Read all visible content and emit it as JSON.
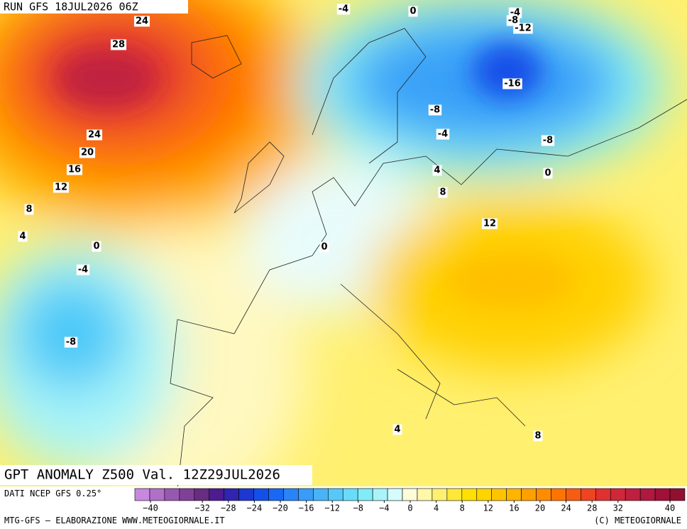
{
  "header": {
    "run": "RUN GFS 18JUL2026 06Z"
  },
  "map": {
    "title": "GPT ANOMALY Z500 Val. 12Z29JUL2026",
    "contour_labels": [
      "-4",
      "0",
      "-4",
      "-8",
      "-12",
      "24",
      "28",
      "-16",
      "-8",
      "-4",
      "-8",
      "24",
      "20",
      "16",
      "12",
      "4",
      "0",
      "8",
      "8",
      "12",
      "4",
      "0",
      "0",
      "-4",
      "-8",
      "4",
      "8"
    ]
  },
  "colorbar": {
    "source": "DATI NCEP GFS 0.25°",
    "colors": [
      "#c888e0",
      "#b070c8",
      "#9858b0",
      "#804098",
      "#682c80",
      "#4c1c90",
      "#3024b0",
      "#1c38d0",
      "#1450e8",
      "#1868f4",
      "#2884f8",
      "#389cf8",
      "#48b4f8",
      "#58c8f8",
      "#68dcf8",
      "#80ecf8",
      "#a8f4f8",
      "#d4fcfc",
      "#fffcd8",
      "#fff8a8",
      "#fff070",
      "#ffe838",
      "#ffe000",
      "#ffd400",
      "#ffc400",
      "#ffb400",
      "#ffa000",
      "#ff8c00",
      "#ff7400",
      "#f85c10",
      "#ee4420",
      "#e03030",
      "#d02838",
      "#c02040",
      "#b01840",
      "#a01038",
      "#901030"
    ],
    "ticks": [
      -40,
      -32,
      -28,
      -24,
      -20,
      -16,
      -12,
      -8,
      -4,
      0,
      4,
      8,
      12,
      16,
      20,
      24,
      28,
      32,
      40
    ]
  },
  "footer": {
    "left": "MTG-GFS — ELABORAZIONE WWW.METEOGIORNALE.IT",
    "right": "(C) METEOGIORNALE"
  }
}
